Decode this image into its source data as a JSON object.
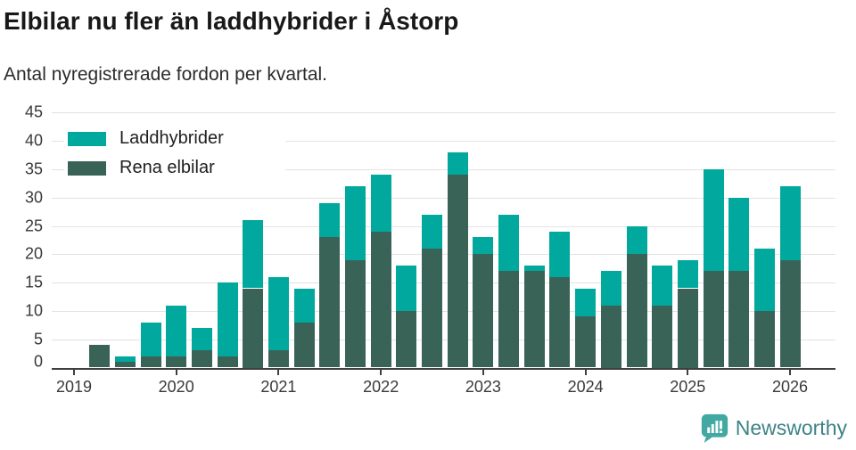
{
  "title": "Elbilar nu fler än laddhybrider i Åstorp",
  "subtitle": "Antal nyregistrerade fordon per kvartal.",
  "legend": [
    {
      "label": "Laddhybrider",
      "color": "#00a89d"
    },
    {
      "label": "Rena elbilar",
      "color": "#3a6358"
    }
  ],
  "branding": {
    "logo_text": "Newsworthy",
    "logo_text_color": "#3e8387",
    "logo_icon_color": "#42a9a2"
  },
  "chart_data": {
    "type": "bar",
    "stacked": true,
    "title": "Elbilar nu fler än laddhybrider i Åstorp",
    "subtitle": "Antal nyregistrerade fordon per kvartal.",
    "xlabel": "",
    "ylabel": "",
    "ylim": [
      0,
      45
    ],
    "grid": true,
    "legend_position": "upper-left",
    "categories": [
      "2019 Q1",
      "2019 Q2",
      "2019 Q3",
      "2019 Q4",
      "2020 Q1",
      "2020 Q2",
      "2020 Q3",
      "2020 Q4",
      "2021 Q1",
      "2021 Q2",
      "2021 Q3",
      "2021 Q4",
      "2022 Q1",
      "2022 Q2",
      "2022 Q3",
      "2022 Q4",
      "2023 Q1",
      "2023 Q2",
      "2023 Q3",
      "2023 Q4",
      "2024 Q1",
      "2024 Q2",
      "2024 Q3",
      "2024 Q4",
      "2025 Q1",
      "2025 Q2",
      "2025 Q3",
      "2025 Q4",
      "2026 Q1"
    ],
    "series": [
      {
        "name": "Rena elbilar",
        "color": "#3a6358",
        "values": [
          0,
          4,
          1,
          2,
          2,
          3,
          2,
          14,
          3,
          8,
          23,
          19,
          24,
          10,
          21,
          34,
          20,
          17,
          17,
          16,
          9,
          11,
          20,
          11,
          14,
          17,
          17,
          10,
          19
        ]
      },
      {
        "name": "Laddhybrider",
        "color": "#00a89d",
        "values": [
          0,
          0,
          1,
          6,
          9,
          4,
          13,
          12,
          13,
          6,
          6,
          13,
          10,
          8,
          6,
          4,
          3,
          10,
          1,
          8,
          5,
          6,
          5,
          7,
          5,
          18,
          13,
          11,
          13
        ]
      }
    ],
    "y_ticks": [
      0,
      5,
      10,
      15,
      20,
      25,
      30,
      35,
      40,
      45
    ],
    "x_tick_labels": [
      "2019",
      "2020",
      "2021",
      "2022",
      "2023",
      "2024",
      "2025",
      "2026"
    ]
  }
}
